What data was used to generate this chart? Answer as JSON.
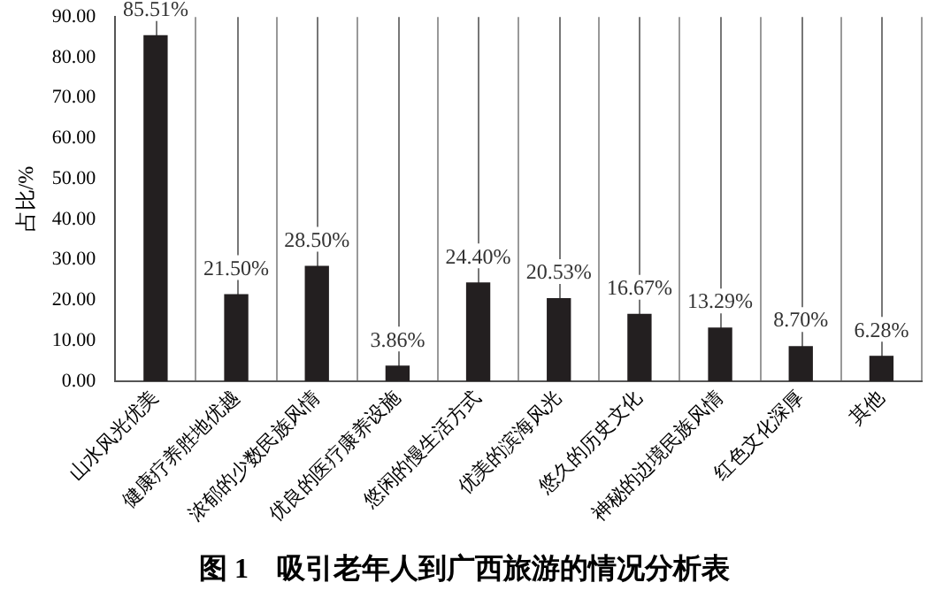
{
  "chart_data": {
    "type": "bar",
    "title": "图 1　吸引老年人到广西旅游的情况分析表",
    "ylabel": "占比/%",
    "categories": [
      "山水风光优美",
      "健康疗养胜地优越",
      "浓郁的少数民族风情",
      "优良的医疗康养设施",
      "悠闲的慢生活方式",
      "优美的滨海风光",
      "悠久的历史文化",
      "神秘的边境民族风情",
      "红色文化深厚",
      "其他"
    ],
    "values": [
      85.51,
      21.5,
      28.5,
      3.86,
      24.4,
      20.53,
      16.67,
      13.29,
      8.7,
      6.28
    ],
    "value_labels": [
      "85.51%",
      "21.50%",
      "28.50%",
      "3.86%",
      "24.40%",
      "20.53%",
      "16.67%",
      "13.29%",
      "8.70%",
      "6.28%"
    ],
    "color": "#231f20",
    "ylim": [
      0,
      90
    ],
    "yticks": [
      {
        "value": 0,
        "label": "0.00"
      },
      {
        "value": 10,
        "label": "10.00"
      },
      {
        "value": 20,
        "label": "20.00"
      },
      {
        "value": 30,
        "label": "30.00"
      },
      {
        "value": 40,
        "label": "40.00"
      },
      {
        "value": 50,
        "label": "50.00"
      },
      {
        "value": 60,
        "label": "60.00"
      },
      {
        "value": 70,
        "label": "70.00"
      },
      {
        "value": 80,
        "label": "80.00"
      },
      {
        "value": 90,
        "label": "90.00"
      }
    ],
    "grid": "x",
    "legend": false
  }
}
